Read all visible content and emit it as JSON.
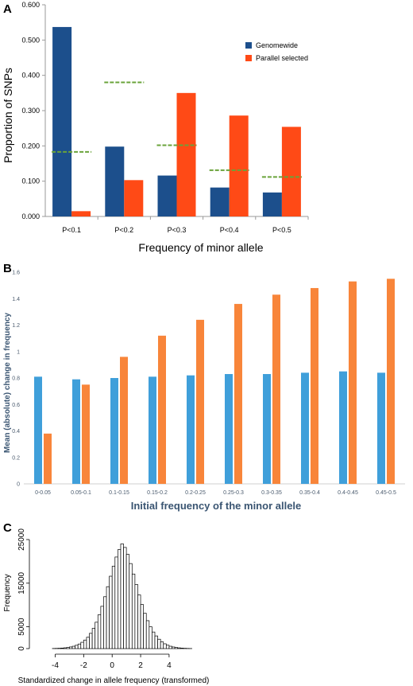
{
  "panels": {
    "a": "A",
    "b": "B",
    "c": "C"
  },
  "chart_data": [
    {
      "type": "bar",
      "panel": "A",
      "categories": [
        "P<0.1",
        "P<0.2",
        "P<0.3",
        "P<0.4",
        "P<0.5"
      ],
      "series": [
        {
          "name": "Genomewide",
          "color": "#1c4f8c",
          "values": [
            0.537,
            0.198,
            0.116,
            0.082,
            0.068
          ]
        },
        {
          "name": "Parallel selected",
          "color": "#ff4a16",
          "values": [
            0.015,
            0.103,
            0.35,
            0.286,
            0.254
          ]
        }
      ],
      "reference_values": [
        0.183,
        0.38,
        0.202,
        0.131,
        0.112
      ],
      "reference_color": "#6aa33a",
      "xlabel": "Frequency of minor allele",
      "ylabel": "Proportion of SNPs",
      "ylim": [
        0,
        0.6
      ],
      "yticks": [
        "0.000",
        "0.100",
        "0.200",
        "0.300",
        "0.400",
        "0.500",
        "0.600"
      ],
      "grid": false,
      "legend_position": "top-right"
    },
    {
      "type": "bar",
      "panel": "B",
      "categories": [
        "0-0.05",
        "0.05-0.1",
        "0.1-0.15",
        "0.15-0.2",
        "0.2-0.25",
        "0.25-0.3",
        "0.3-0.35",
        "0.35-0.4",
        "0.4-0.45",
        "0.45-0.5"
      ],
      "series": [
        {
          "color": "#3f9fda",
          "values": [
            0.81,
            0.79,
            0.8,
            0.81,
            0.82,
            0.83,
            0.83,
            0.84,
            0.85,
            0.84
          ]
        },
        {
          "color": "#f8853a",
          "values": [
            0.38,
            0.75,
            0.96,
            1.12,
            1.24,
            1.36,
            1.43,
            1.48,
            1.53,
            1.55
          ]
        }
      ],
      "xlabel": "Initial frequency of the minor allele",
      "ylabel": "Mean (absolute) change in frequency",
      "ylim": [
        0,
        1.6
      ],
      "yticks": [
        "0",
        "0.2",
        "0.4",
        "0.6",
        "0.8",
        "1",
        "1.2",
        "1.4",
        "1.6"
      ],
      "grid": false
    },
    {
      "type": "bar",
      "panel": "C",
      "subtype": "histogram",
      "bin_width": 0.2,
      "bin_start": -4.4,
      "values": [
        0,
        30,
        50,
        80,
        120,
        180,
        260,
        380,
        540,
        760,
        1050,
        1450,
        1960,
        2600,
        3500,
        4650,
        6050,
        7750,
        9700,
        11900,
        14200,
        16600,
        18900,
        21000,
        22700,
        24000,
        23200,
        21600,
        19500,
        17100,
        14700,
        12300,
        10100,
        8100,
        6400,
        5000,
        3800,
        2900,
        2150,
        1550,
        1100,
        780,
        540,
        370,
        250,
        170,
        110,
        70,
        40,
        20
      ],
      "xlabel": "Standardized change in allele frequency (transformed)",
      "ylabel": "Frequency",
      "xlim": [
        -5.2,
        5.4
      ],
      "ylim": [
        0,
        25000
      ],
      "xticks": [
        "-4",
        "-2",
        "0",
        "2",
        "4"
      ],
      "yticks": [
        "0",
        "5000",
        "15000",
        "25000"
      ],
      "grid": false
    }
  ]
}
